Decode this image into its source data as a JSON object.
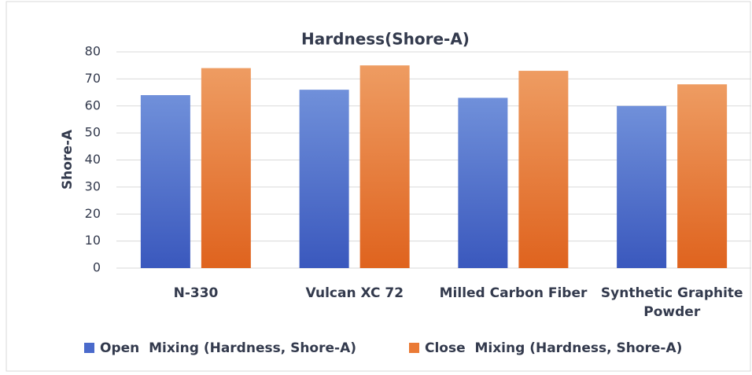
{
  "chart_data": {
    "type": "bar",
    "title": "Hardness(Shore-A)",
    "y_label": "Shore-A",
    "categories": [
      "N-330",
      "Vulcan XC 72",
      "Milled Carbon Fiber",
      "Synthetic Graphite Powder"
    ],
    "series": [
      {
        "name": "Open  Mixing (Hardness, Shore-A)",
        "color": "#4a6acb",
        "values": [
          64,
          66,
          63,
          60
        ]
      },
      {
        "name": "Close  Mixing (Hardness, Shore-A)",
        "color": "#ea7a35",
        "values": [
          74,
          75,
          73,
          68
        ]
      }
    ],
    "ylim": [
      0,
      80
    ],
    "yticks": [
      0,
      10,
      20,
      30,
      40,
      50,
      60,
      70,
      80
    ],
    "grid": true,
    "legend": "bottom"
  }
}
